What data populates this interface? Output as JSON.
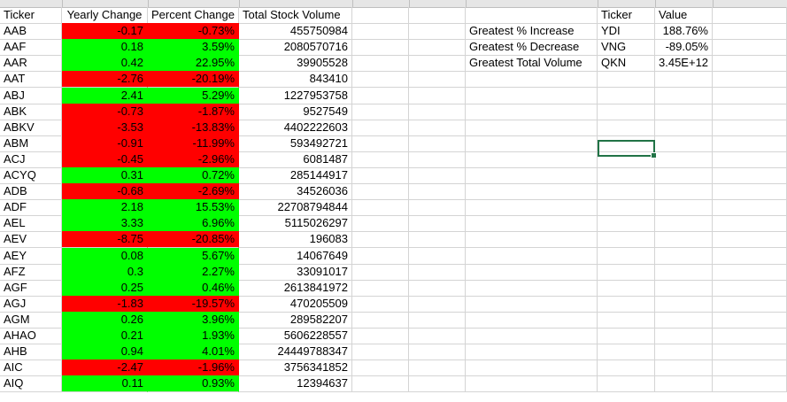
{
  "columns": {
    "headers": [
      "Ticker",
      "Yearly Change",
      "Percent Change",
      "Total Stock Volume"
    ]
  },
  "rows": [
    {
      "ticker": "AAB",
      "yearly": "-0.17",
      "percent": "-0.73%",
      "volume": "455750984"
    },
    {
      "ticker": "AAF",
      "yearly": "0.18",
      "percent": "3.59%",
      "volume": "2080570716"
    },
    {
      "ticker": "AAR",
      "yearly": "0.42",
      "percent": "22.95%",
      "volume": "39905528"
    },
    {
      "ticker": "AAT",
      "yearly": "-2.76",
      "percent": "-20.19%",
      "volume": "843410"
    },
    {
      "ticker": "ABJ",
      "yearly": "2.41",
      "percent": "5.29%",
      "volume": "1227953758"
    },
    {
      "ticker": "ABK",
      "yearly": "-0.73",
      "percent": "-1.87%",
      "volume": "9527549"
    },
    {
      "ticker": "ABKV",
      "yearly": "-3.53",
      "percent": "-13.83%",
      "volume": "4402222603"
    },
    {
      "ticker": "ABM",
      "yearly": "-0.91",
      "percent": "-11.99%",
      "volume": "593492721"
    },
    {
      "ticker": "ACJ",
      "yearly": "-0.45",
      "percent": "-2.96%",
      "volume": "6081487"
    },
    {
      "ticker": "ACYQ",
      "yearly": "0.31",
      "percent": "0.72%",
      "volume": "285144917"
    },
    {
      "ticker": "ADB",
      "yearly": "-0.68",
      "percent": "-2.69%",
      "volume": "34526036"
    },
    {
      "ticker": "ADF",
      "yearly": "2.18",
      "percent": "15.53%",
      "volume": "22708794844"
    },
    {
      "ticker": "AEL",
      "yearly": "3.33",
      "percent": "6.96%",
      "volume": "5115026297"
    },
    {
      "ticker": "AEV",
      "yearly": "-8.75",
      "percent": "-20.85%",
      "volume": "196083"
    },
    {
      "ticker": "AEY",
      "yearly": "0.08",
      "percent": "5.67%",
      "volume": "14067649"
    },
    {
      "ticker": "AFZ",
      "yearly": "0.3",
      "percent": "2.27%",
      "volume": "33091017"
    },
    {
      "ticker": "AGF",
      "yearly": "0.25",
      "percent": "0.46%",
      "volume": "2613841972"
    },
    {
      "ticker": "AGJ",
      "yearly": "-1.83",
      "percent": "-19.57%",
      "volume": "470205509"
    },
    {
      "ticker": "AGM",
      "yearly": "0.26",
      "percent": "3.96%",
      "volume": "289582207"
    },
    {
      "ticker": "AHAO",
      "yearly": "0.21",
      "percent": "1.93%",
      "volume": "5606228557"
    },
    {
      "ticker": "AHB",
      "yearly": "0.94",
      "percent": "4.01%",
      "volume": "24449788347"
    },
    {
      "ticker": "AIC",
      "yearly": "-2.47",
      "percent": "-1.96%",
      "volume": "3756341852"
    },
    {
      "ticker": "AIQ",
      "yearly": "0.11",
      "percent": "0.93%",
      "volume": "12394637"
    }
  ],
  "summary": {
    "headers": {
      "ticker": "Ticker",
      "value": "Value"
    },
    "rows": [
      {
        "label": "Greatest % Increase",
        "ticker": "YDI",
        "value": "188.76%"
      },
      {
        "label": "Greatest % Decrease",
        "ticker": "VNG",
        "value": "-89.05%"
      },
      {
        "label": "Greatest Total Volume",
        "ticker": "QKN",
        "value": "3.45E+12"
      }
    ]
  },
  "colors": {
    "positive": "#00ff00",
    "negative": "#ff0000",
    "gridline": "#d4d4d4",
    "selection": "#217346"
  }
}
